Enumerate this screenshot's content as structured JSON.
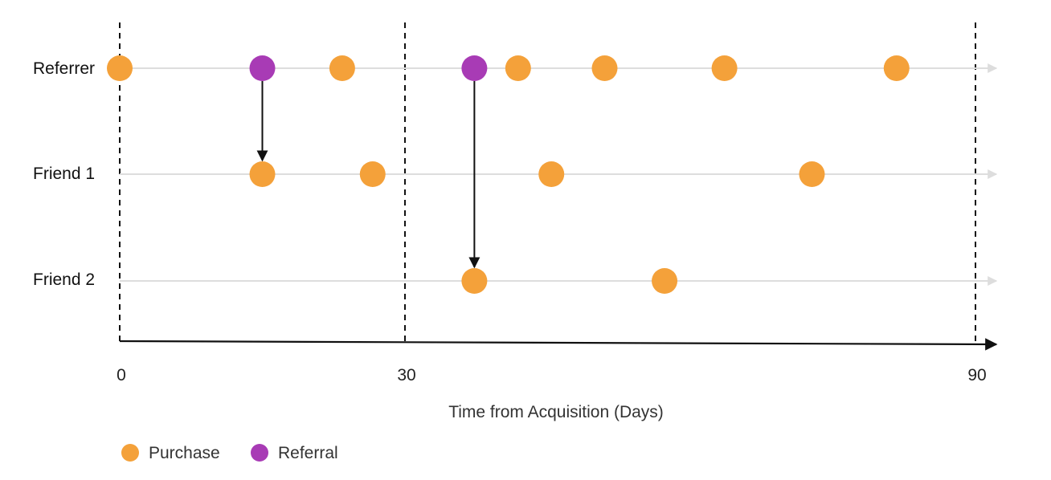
{
  "axis": {
    "title": "Time from Acquisition (Days)",
    "ticks": [
      {
        "value": 0,
        "label": "0"
      },
      {
        "value": 30,
        "label": "30"
      },
      {
        "value": 90,
        "label": "90"
      }
    ],
    "range": [
      0,
      90
    ],
    "guide_lines_at": [
      0,
      30,
      90
    ]
  },
  "colors": {
    "purchase": "#F4A13A",
    "referral": "#A83BB5",
    "timeline": "#DDDDDD",
    "axis": "#111111"
  },
  "rows": [
    {
      "label": "Referrer"
    },
    {
      "label": "Friend 1"
    },
    {
      "label": "Friend 2"
    }
  ],
  "events": [
    {
      "row": 0,
      "day": 0,
      "type": "purchase"
    },
    {
      "row": 0,
      "day": 15,
      "type": "referral"
    },
    {
      "row": 0,
      "day": 23.4,
      "type": "purchase"
    },
    {
      "row": 0,
      "day": 37.3,
      "type": "referral"
    },
    {
      "row": 0,
      "day": 41.9,
      "type": "purchase"
    },
    {
      "row": 0,
      "day": 51,
      "type": "purchase"
    },
    {
      "row": 0,
      "day": 63.6,
      "type": "purchase"
    },
    {
      "row": 0,
      "day": 81.7,
      "type": "purchase"
    },
    {
      "row": 1,
      "day": 15,
      "type": "purchase"
    },
    {
      "row": 1,
      "day": 26.6,
      "type": "purchase"
    },
    {
      "row": 1,
      "day": 45.4,
      "type": "purchase"
    },
    {
      "row": 1,
      "day": 72.8,
      "type": "purchase"
    },
    {
      "row": 2,
      "day": 37.3,
      "type": "purchase"
    },
    {
      "row": 2,
      "day": 57.3,
      "type": "purchase"
    }
  ],
  "referral_links": [
    {
      "from_row": 0,
      "to_row": 1,
      "day": 15
    },
    {
      "from_row": 0,
      "to_row": 2,
      "day": 37.3
    }
  ],
  "legend": [
    {
      "type": "purchase",
      "label": "Purchase"
    },
    {
      "type": "referral",
      "label": "Referral"
    }
  ]
}
